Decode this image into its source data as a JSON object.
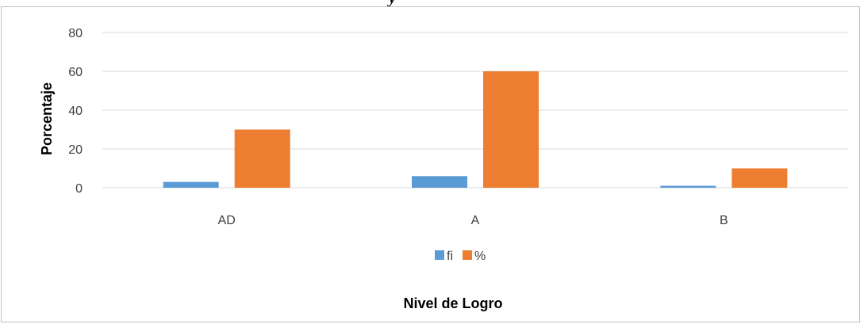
{
  "chart_data": {
    "type": "bar",
    "title_fragment": "y",
    "categories": [
      "AD",
      "A",
      "B"
    ],
    "series": [
      {
        "name": "fi",
        "values": [
          3,
          6,
          1
        ],
        "color": "#5b9bd5"
      },
      {
        "name": "%",
        "values": [
          30,
          60,
          10
        ],
        "color": "#ed7d31"
      }
    ],
    "xlabel": "Nivel de Logro",
    "ylabel": "Porcentaje",
    "ylim": [
      0,
      80
    ],
    "yticks": [
      0,
      20,
      40,
      60,
      80
    ],
    "grid": true,
    "legend_position": "bottom"
  }
}
